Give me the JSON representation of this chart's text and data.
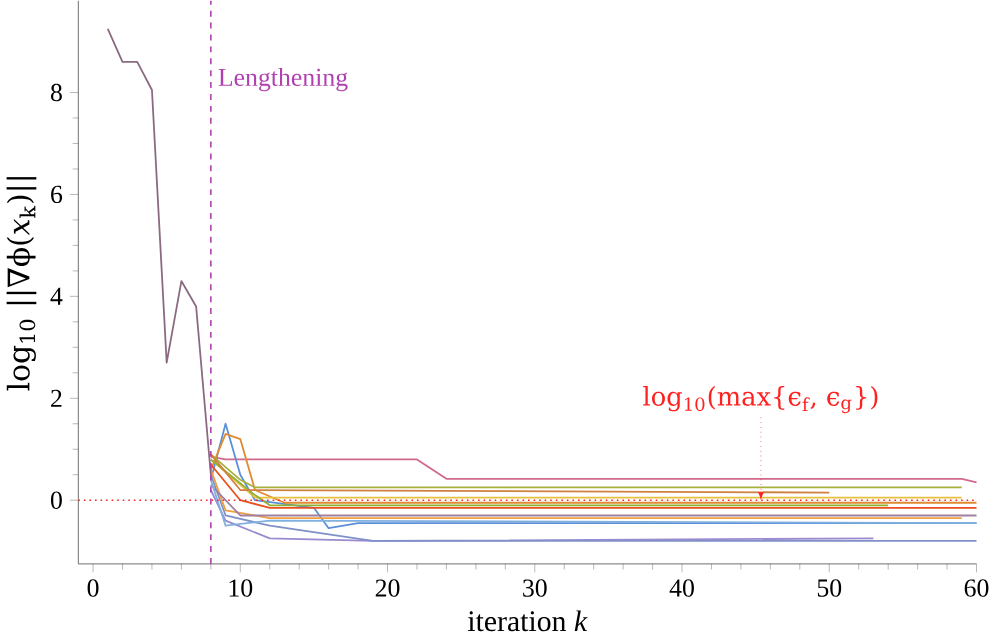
{
  "chart_data": {
    "type": "line",
    "xlabel": "iteration *k*",
    "ylabel": "log$_{10}$ ||∇ϕ(*x*$_{k}$)||",
    "xlim": [
      -1,
      60
    ],
    "ylim": [
      -1.25,
      9.8
    ],
    "xticks": [
      0,
      10,
      20,
      30,
      40,
      50,
      60
    ],
    "yticks": [
      0,
      2,
      4,
      6,
      8
    ],
    "marker": "none",
    "line_style": "solid",
    "grid": false,
    "ref_lines": [
      {
        "axis": "x",
        "value": 8,
        "label": "Lengthening",
        "color": "#b040b0",
        "line_style": "dashed"
      },
      {
        "axis": "y",
        "value": 0,
        "label": "log$_{10}$(max{ϵ$_{f}$, ϵ$_{g}$})",
        "color": "#ff2020",
        "line_style": "dotted"
      }
    ],
    "series": [
      {
        "color": "#d0698a",
        "x": [
          8,
          9,
          22,
          24,
          59,
          60
        ],
        "values": [
          0.85,
          0.8,
          0.8,
          0.42,
          0.42,
          0.35
        ]
      },
      {
        "color": "#5b8fd6",
        "x": [
          8,
          9,
          10,
          11,
          15,
          16,
          18,
          60
        ],
        "values": [
          0.4,
          1.5,
          0.5,
          0.0,
          -0.15,
          -0.55,
          -0.45,
          -0.45
        ]
      },
      {
        "color": "#e08a30",
        "x": [
          8,
          9,
          10,
          11,
          13,
          60
        ],
        "values": [
          0.6,
          1.3,
          1.2,
          0.2,
          -0.05,
          -0.05
        ]
      },
      {
        "color": "#a8b040",
        "x": [
          8,
          10,
          11,
          59
        ],
        "values": [
          0.9,
          0.4,
          0.25,
          0.25
        ]
      },
      {
        "color": "#9a8ad0",
        "x": [
          8,
          9,
          12,
          19,
          53
        ],
        "values": [
          0.2,
          -0.4,
          -0.75,
          -0.8,
          -0.75
        ]
      },
      {
        "color": "#8090c8",
        "x": [
          8,
          9,
          12,
          19,
          60
        ],
        "values": [
          0.5,
          -0.3,
          -0.5,
          -0.8,
          -0.8
        ]
      },
      {
        "color": "#e8c040",
        "x": [
          8,
          10,
          11,
          59
        ],
        "values": [
          0.8,
          0.3,
          0.05,
          0.05
        ]
      },
      {
        "color": "#e85020",
        "x": [
          8,
          10,
          12,
          60
        ],
        "values": [
          0.7,
          0.0,
          -0.15,
          -0.15
        ]
      },
      {
        "color": "#90b030",
        "x": [
          8,
          11,
          12,
          54
        ],
        "values": [
          0.8,
          0.1,
          -0.1,
          -0.1
        ]
      },
      {
        "color": "#f0a040",
        "x": [
          8,
          9,
          12,
          59
        ],
        "values": [
          0.6,
          -0.2,
          -0.35,
          -0.35
        ]
      },
      {
        "color": "#a080a0",
        "x": [
          8,
          10,
          60
        ],
        "values": [
          0.3,
          -0.3,
          -0.3
        ]
      },
      {
        "color": "#80b0e0",
        "x": [
          8,
          9,
          12,
          60
        ],
        "values": [
          0.4,
          -0.5,
          -0.4,
          -0.45
        ]
      },
      {
        "color": "#d08040",
        "x": [
          8,
          10,
          50
        ],
        "values": [
          0.9,
          0.2,
          0.15
        ]
      },
      {
        "color": "#8a6a80",
        "x": [
          1,
          2,
          3,
          4,
          5,
          6,
          7,
          8
        ],
        "values": [
          9.25,
          8.6,
          8.6,
          8.05,
          2.7,
          4.3,
          3.8,
          0.5
        ]
      }
    ]
  }
}
